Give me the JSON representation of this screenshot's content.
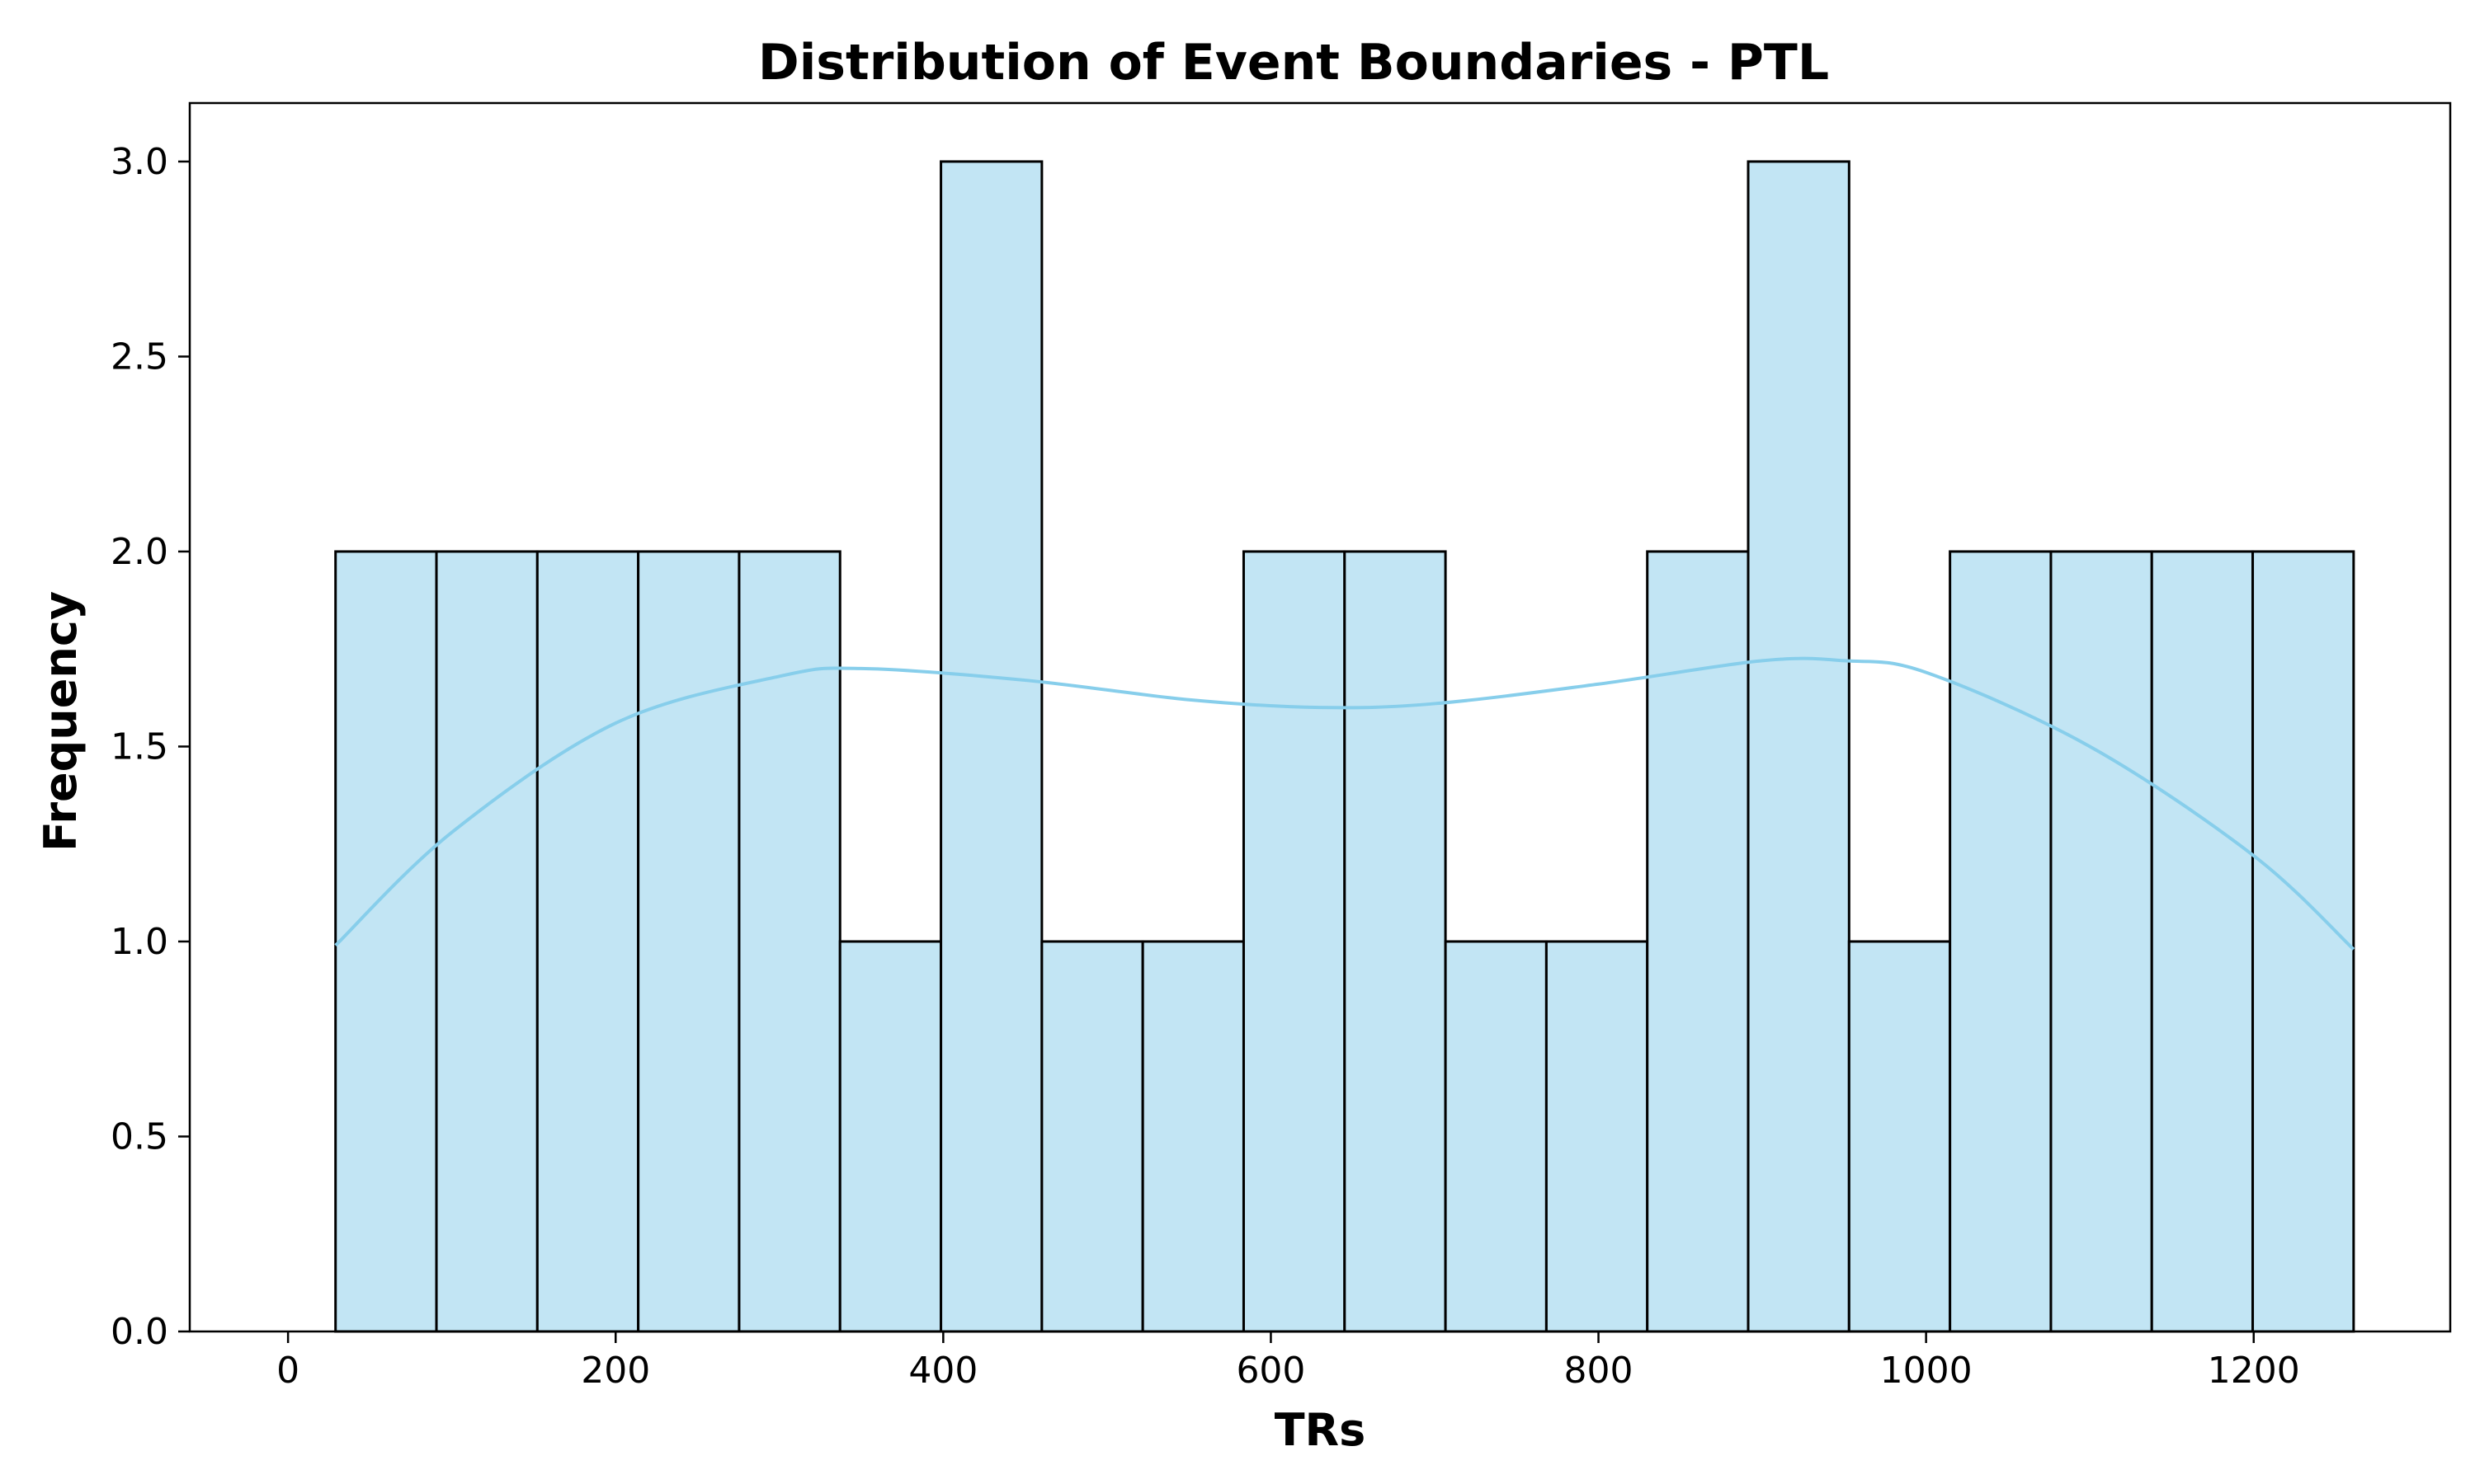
{
  "chart_data": {
    "type": "bar",
    "subtype": "histogram-with-kde",
    "title": "Distribution of Event Boundaries - PTL",
    "xlabel": "TRs",
    "ylabel": "Frequency",
    "xlim": [
      -60,
      1320
    ],
    "ylim": [
      0,
      3.15
    ],
    "xticks": [
      0,
      200,
      400,
      600,
      800,
      1000,
      1200
    ],
    "yticks": [
      0.0,
      0.5,
      1.0,
      1.5,
      2.0,
      2.5,
      3.0
    ],
    "grid": false,
    "legend": "none",
    "bin_edges": [
      29,
      90.6,
      152.2,
      213.8,
      275.4,
      337,
      398.6,
      460.2,
      521.8,
      583.4,
      645,
      706.6,
      768.2,
      829.8,
      891.4,
      953,
      1014.6,
      1076.2,
      1137.8,
      1199.4,
      1261
    ],
    "counts": [
      2,
      2,
      2,
      2,
      2,
      1,
      3,
      1,
      1,
      2,
      2,
      1,
      1,
      2,
      3,
      1,
      2,
      2,
      2,
      2
    ],
    "kde": {
      "x": [
        29,
        100,
        200,
        300,
        350,
        450,
        550,
        630,
        700,
        800,
        900,
        950,
        1000,
        1100,
        1200,
        1261
      ],
      "y": [
        0.99,
        1.28,
        1.56,
        1.68,
        1.7,
        1.67,
        1.62,
        1.6,
        1.61,
        1.66,
        1.72,
        1.72,
        1.69,
        1.5,
        1.22,
        0.98
      ]
    },
    "colors": {
      "bar_fill": "#c2e5f4",
      "bar_edge": "#000000",
      "kde_line": "#87ceeb"
    }
  }
}
